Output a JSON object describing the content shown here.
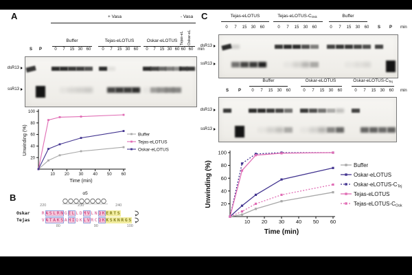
{
  "colors": {
    "background": "#000000",
    "canvas": "#ffffff",
    "buffer_series": "#a8a8a8",
    "tejas_series": "#e06cb4",
    "oskar_series": "#41338f",
    "band": "#0a0a0a",
    "align_letter": "#d24a86",
    "align_pink_bg": "#f8c7da",
    "align_pink_letter": "#c2286c",
    "align_box_border": "#94a3dc",
    "align_yellow_bg": "#f2eda0",
    "align_yellow_letter": "#84801d"
  },
  "panel_a": {
    "label": "A",
    "gel": {
      "plus_condition": "+ Vasa",
      "minus_condition": "- Vasa",
      "marker_lanes": [
        "S",
        "P"
      ],
      "groups": [
        {
          "label": "Buffer"
        },
        {
          "label": "Tejas-eLOTUS"
        },
        {
          "label": "Oskar-eLOTUS"
        }
      ],
      "times": [
        "0",
        "7",
        "15",
        "30",
        "60"
      ],
      "minus_lanes": [
        {
          "label": "Tejas-eL",
          "time": "60"
        },
        {
          "label": "Oskar-eL",
          "time": "60"
        }
      ],
      "unit": "min",
      "band_rows": [
        "dsR13",
        "ssR13"
      ],
      "lane_bands": [
        [
          0.8,
          0,
          0,
          1
        ],
        [
          0,
          0.95,
          1,
          0
        ],
        [
          0.85,
          0,
          0,
          0
        ],
        [
          0.85,
          0.05,
          0,
          0
        ],
        [
          0.8,
          0.1,
          0,
          0
        ],
        [
          0.78,
          0.13,
          0,
          0
        ],
        [
          0.7,
          0.16,
          0,
          0
        ],
        [
          0.85,
          0,
          0,
          0
        ],
        [
          0.08,
          0.75,
          0,
          0
        ],
        [
          0,
          0.8,
          0,
          0
        ],
        [
          0,
          0.8,
          0,
          0
        ],
        [
          0,
          0.85,
          0,
          0
        ],
        [
          0.85,
          0.04,
          0,
          0
        ],
        [
          0.75,
          0.35,
          0,
          0
        ],
        [
          0.6,
          0.4,
          0,
          0
        ],
        [
          0.5,
          0.45,
          0,
          0
        ],
        [
          0.42,
          0.45,
          0,
          0
        ],
        [
          0.8,
          0,
          0,
          0
        ],
        [
          0.8,
          0,
          0,
          0
        ]
      ]
    }
  },
  "panel_b": {
    "label": "B",
    "helix_label": "α5",
    "top_numbers": [
      {
        "text": "220",
        "col": 1
      },
      {
        "text": "230",
        "col": 11
      },
      {
        "text": "240",
        "col": 21
      }
    ],
    "bottom_numbers": [
      {
        "text": "80",
        "col": 5
      },
      {
        "text": "90",
        "col": 15
      },
      {
        "text": "100",
        "col": 24
      }
    ],
    "rows": [
      {
        "name": "Oskar",
        "segments": [
          {
            "t": "R",
            "h": "plain"
          },
          {
            "t": "ASLRN",
            "h": "pink"
          },
          {
            "t": "G",
            "h": "plain"
          },
          {
            "t": "EL",
            "h": "pink"
          },
          {
            "t": "LD",
            "h": "plain"
          },
          {
            "t": "MV",
            "h": "pink"
          },
          {
            "t": "LN",
            "h": "plain"
          },
          {
            "t": "QK",
            "h": "pink"
          },
          {
            "t": "ERTS",
            "h": "yellow"
          }
        ]
      },
      {
        "name": "Tejas",
        "segments": [
          {
            "t": "V",
            "h": "plain"
          },
          {
            "t": "ATAKS",
            "h": "pink"
          },
          {
            "t": "A",
            "h": "plain"
          },
          {
            "t": "HI",
            "h": "pink"
          },
          {
            "t": "QK",
            "h": "plain"
          },
          {
            "t": "LV",
            "h": "pink"
          },
          {
            "t": "RC",
            "h": "plain"
          },
          {
            "t": "QK",
            "h": "pink"
          },
          {
            "t": "KSKNRGS",
            "h": "yellow"
          }
        ]
      }
    ]
  },
  "panel_c": {
    "label": "C",
    "gel_top": {
      "groups": [
        {
          "label": "Tejas-eLOTUS"
        },
        {
          "label": "Tejas-eLOTUS-C",
          "sub": "Osk"
        },
        {
          "label": "Buffer"
        }
      ],
      "times": [
        "0",
        "7",
        "15",
        "30",
        "60"
      ],
      "marker_lanes": [
        "S",
        "P"
      ],
      "unit": "min",
      "band_rows": [
        "dsR13",
        "ssR13"
      ],
      "lane_bands": [
        [
          0.85,
          0,
          0,
          1
        ],
        [
          0.15,
          0.55,
          0,
          0
        ],
        [
          0,
          0.75,
          0,
          0
        ],
        [
          0,
          0.8,
          0,
          0
        ],
        [
          0,
          0.9,
          0,
          0
        ],
        [
          0.8,
          0,
          0,
          0
        ],
        [
          0.85,
          0.04,
          0,
          0
        ],
        [
          0.85,
          0.12,
          0,
          0
        ],
        [
          0.7,
          0.25,
          0,
          0
        ],
        [
          0.5,
          0.3,
          0,
          0
        ],
        [
          0.75,
          0,
          0,
          0
        ],
        [
          0.8,
          0,
          0,
          0
        ],
        [
          0.8,
          0.04,
          0,
          0
        ],
        [
          0.75,
          0.07,
          0,
          0
        ],
        [
          0.7,
          0.1,
          0,
          0
        ],
        [
          0.75,
          0,
          0,
          0
        ],
        [
          0,
          0.95,
          1,
          0
        ]
      ]
    },
    "gel_bottom": {
      "groups": [
        {
          "label": "Buffer"
        },
        {
          "label": "Oskar-eLOTUS"
        },
        {
          "label": "Oskar-eLOTUS-C",
          "sub": "Tej"
        }
      ],
      "times": [
        "0",
        "7",
        "15",
        "30",
        "60"
      ],
      "marker_lanes": [
        "S",
        "P"
      ],
      "unit": "min",
      "band_rows": [
        "dsR13",
        "ssR13"
      ],
      "lane_bands": [
        [
          0.8,
          0,
          0,
          0
        ],
        [
          0,
          0.95,
          1,
          0
        ],
        [
          0.85,
          0,
          0,
          0
        ],
        [
          0.85,
          0.04,
          0,
          0
        ],
        [
          0.8,
          0.12,
          0,
          0
        ],
        [
          0.75,
          0.2,
          0,
          0
        ],
        [
          0.55,
          0.3,
          0,
          0
        ],
        [
          0.8,
          0.04,
          0,
          0
        ],
        [
          0.7,
          0.12,
          0,
          0
        ],
        [
          0.55,
          0.25,
          0,
          0
        ],
        [
          0.3,
          0.45,
          0,
          0
        ],
        [
          0.22,
          0.6,
          0,
          0
        ],
        [
          0.75,
          0,
          0,
          0
        ],
        [
          0,
          0.6,
          0,
          0
        ],
        [
          0,
          0.62,
          0,
          0
        ],
        [
          0,
          0.58,
          0,
          0
        ],
        [
          0,
          0.62,
          0,
          0
        ]
      ]
    }
  },
  "chart_data": [
    {
      "id": "panel_a_unwinding",
      "type": "line",
      "title": "",
      "xlabel": "Time (min)",
      "ylabel": "Unwinding (%)",
      "x": [
        0,
        7,
        15,
        30,
        60
      ],
      "xticks": [
        10,
        20,
        30,
        40,
        50,
        60
      ],
      "yticks": [
        20,
        40,
        60,
        80,
        100
      ],
      "xlim": [
        0,
        60
      ],
      "ylim": [
        0,
        100
      ],
      "grid": false,
      "legend_position": "right",
      "series": [
        {
          "name": "Buffer",
          "color_key": "buffer_series",
          "dashed": false,
          "values": [
            0,
            15,
            24,
            31,
            38
          ]
        },
        {
          "name": "Tejas-eLOTUS",
          "color_key": "tejas_series",
          "dashed": false,
          "values": [
            0,
            85,
            90,
            91,
            94
          ]
        },
        {
          "name": "Oskar-eLOTUS",
          "color_key": "oskar_series",
          "dashed": false,
          "values": [
            0,
            35,
            43,
            54,
            66
          ]
        }
      ]
    },
    {
      "id": "panel_c_unwinding",
      "type": "line",
      "title": "",
      "xlabel": "Time (min)",
      "ylabel": "Unwinding (%)",
      "x": [
        0,
        7,
        15,
        30,
        60
      ],
      "xticks": [
        10,
        20,
        30,
        40,
        50,
        60
      ],
      "yticks": [
        20,
        40,
        60,
        80,
        100
      ],
      "xlim": [
        0,
        60
      ],
      "ylim": [
        0,
        100
      ],
      "grid": false,
      "legend_position": "right",
      "series": [
        {
          "name": "Buffer",
          "color_key": "buffer_series",
          "dashed": false,
          "values": [
            0,
            3,
            12,
            24,
            38
          ]
        },
        {
          "name": "Oskar-eLOTUS",
          "color_key": "oskar_series",
          "dashed": false,
          "values": [
            0,
            17,
            34,
            58,
            76
          ]
        },
        {
          "name": "Oskar-eLOTUS-C",
          "sub": "Tej",
          "color_key": "oskar_series",
          "dashed": true,
          "values": [
            0,
            83,
            98,
            100,
            100
          ]
        },
        {
          "name": "Tejas-eLOTUS",
          "color_key": "tejas_series",
          "dashed": false,
          "values": [
            0,
            72,
            96,
            99,
            100
          ]
        },
        {
          "name": "Tejas-eLOTUS-C",
          "sub": "Osk",
          "color_key": "tejas_series",
          "dashed": true,
          "values": [
            0,
            8,
            20,
            34,
            50
          ]
        }
      ]
    }
  ]
}
